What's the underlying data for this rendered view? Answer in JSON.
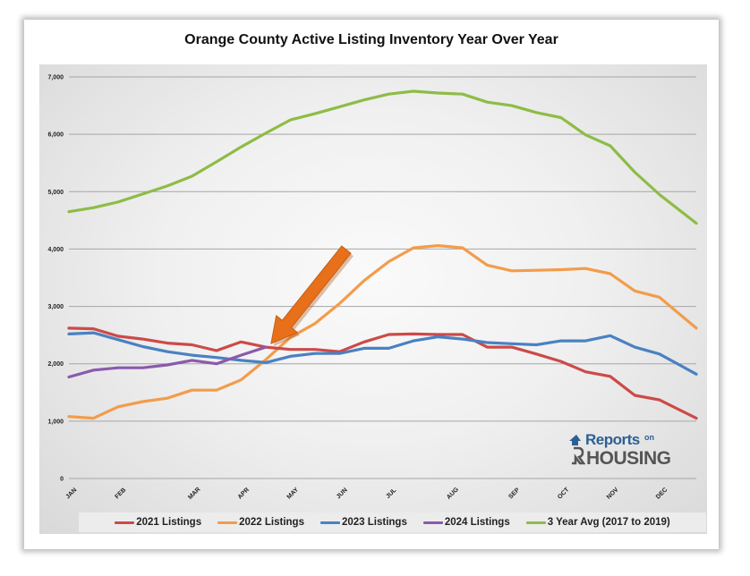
{
  "chart_data": {
    "type": "line",
    "title": "Orange County Active Listing Inventory Year Over Year",
    "xlabel": "",
    "ylabel": "",
    "ylim": [
      0,
      7000
    ],
    "yticks": [
      "0",
      "1,000",
      "2,000",
      "3,000",
      "4,000",
      "5,000",
      "6,000",
      "7,000"
    ],
    "ytick_values": [
      0,
      1000,
      2000,
      3000,
      4000,
      5000,
      6000,
      7000
    ],
    "grid": true,
    "legend_position": "bottom",
    "x_count": 52,
    "month_labels": [
      {
        "label": "JAN",
        "week": 0
      },
      {
        "label": "FEB",
        "week": 4
      },
      {
        "label": "MAR",
        "week": 10
      },
      {
        "label": "APR",
        "week": 14
      },
      {
        "label": "MAY",
        "week": 18
      },
      {
        "label": "JUN",
        "week": 22
      },
      {
        "label": "JUL",
        "week": 26
      },
      {
        "label": "AUG",
        "week": 31
      },
      {
        "label": "SEP",
        "week": 36
      },
      {
        "label": "OCT",
        "week": 40
      },
      {
        "label": "NOV",
        "week": 44
      },
      {
        "label": "DEC",
        "week": 48
      }
    ],
    "series": [
      {
        "name": "3 Year Avg (2017 to 2019)",
        "color": "#8ebc47",
        "values": [
          4650,
          4720,
          4820,
          4960,
          5100,
          5270,
          5520,
          5780,
          6020,
          6250,
          6360,
          6480,
          6600,
          6700,
          6750,
          6720,
          6700,
          6560,
          6500,
          6380,
          6290,
          5990,
          5800,
          5340,
          4950,
          4450
        ],
        "weeks": [
          0,
          2,
          4,
          6,
          8,
          10,
          12,
          14,
          16,
          18,
          20,
          22,
          24,
          26,
          28,
          30,
          32,
          34,
          36,
          38,
          40,
          42,
          44,
          46,
          48,
          51
        ]
      },
      {
        "name": "2022 Listings",
        "color": "#f39c4a",
        "values": [
          1080,
          1050,
          1250,
          1340,
          1400,
          1540,
          1540,
          1720,
          2070,
          2460,
          2700,
          3050,
          3450,
          3780,
          4020,
          4060,
          4020,
          3720,
          3620,
          3630,
          3640,
          3660,
          3570,
          3270,
          3160,
          2620
        ],
        "weeks": [
          0,
          2,
          4,
          6,
          8,
          10,
          12,
          14,
          16,
          18,
          20,
          22,
          24,
          26,
          28,
          30,
          32,
          34,
          36,
          38,
          40,
          42,
          44,
          46,
          48,
          51
        ]
      },
      {
        "name": "2021 Listings",
        "color": "#cc4a47",
        "values": [
          2620,
          2610,
          2480,
          2430,
          2360,
          2330,
          2230,
          2380,
          2290,
          2250,
          2250,
          2210,
          2380,
          2510,
          2520,
          2510,
          2510,
          2290,
          2290,
          2170,
          2040,
          1860,
          1780,
          1450,
          1370,
          1050
        ],
        "weeks": [
          0,
          2,
          4,
          6,
          8,
          10,
          12,
          14,
          16,
          18,
          20,
          22,
          24,
          26,
          28,
          30,
          32,
          34,
          36,
          38,
          40,
          42,
          44,
          46,
          48,
          51
        ]
      },
      {
        "name": "2023 Listings",
        "color": "#4a81c2",
        "values": [
          2520,
          2540,
          2420,
          2300,
          2210,
          2150,
          2110,
          2060,
          2020,
          2130,
          2180,
          2180,
          2270,
          2270,
          2400,
          2470,
          2430,
          2370,
          2350,
          2330,
          2400,
          2400,
          2490,
          2290,
          2170,
          1820
        ],
        "weeks": [
          0,
          2,
          4,
          6,
          8,
          10,
          12,
          14,
          16,
          18,
          20,
          22,
          24,
          26,
          28,
          30,
          32,
          34,
          36,
          38,
          40,
          42,
          44,
          46,
          48,
          51
        ]
      },
      {
        "name": "2024 Listings",
        "color": "#8a5aac",
        "values": [
          1770,
          1890,
          1930,
          1930,
          1980,
          2060,
          2000,
          2150,
          2290
        ],
        "weeks": [
          0,
          2,
          4,
          6,
          8,
          10,
          12,
          14,
          16
        ]
      }
    ],
    "annotation": {
      "type": "arrow",
      "color": "#e8701a",
      "points_to_week": 16,
      "points_to_value": 2290
    }
  },
  "legend": [
    {
      "label": "2021 Listings",
      "color": "#cc4a47"
    },
    {
      "label": "2022 Listings",
      "color": "#f39c4a"
    },
    {
      "label": "2023 Listings",
      "color": "#4a81c2"
    },
    {
      "label": "2024 Listings",
      "color": "#8a5aac"
    },
    {
      "label": "3 Year Avg (2017 to 2019)",
      "color": "#8ebc47"
    }
  ],
  "logo": {
    "reports": "Reports",
    "on": "on",
    "housing": "HOUSING"
  }
}
